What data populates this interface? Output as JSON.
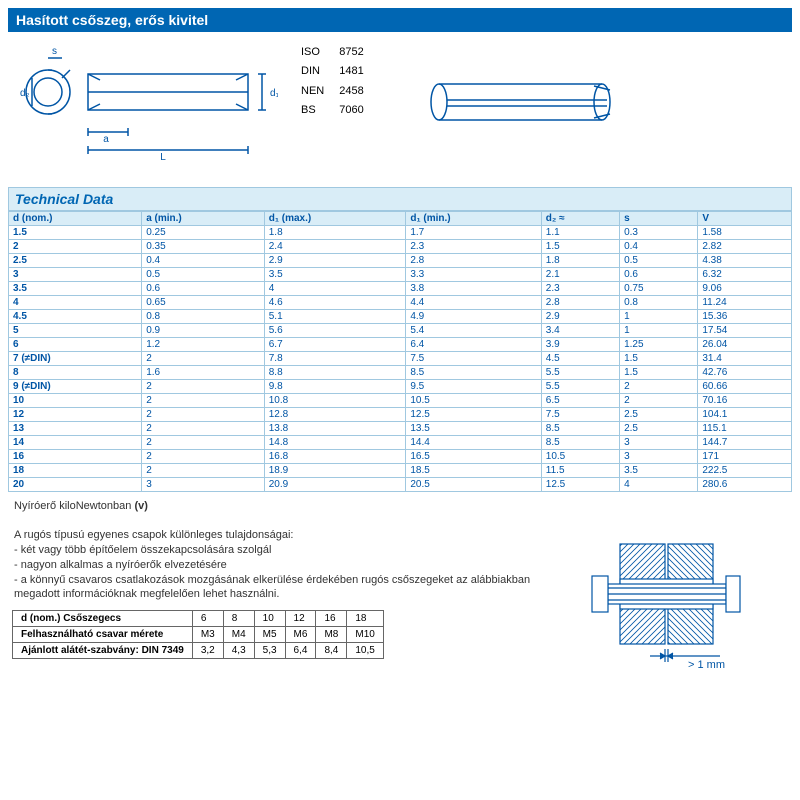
{
  "title": "Hasított csőszeg, erős kivitel",
  "standards": [
    [
      "ISO",
      "8752"
    ],
    [
      "DIN",
      "1481"
    ],
    [
      "NEN",
      "2458"
    ],
    [
      "BS",
      "7060"
    ]
  ],
  "tech_header": "Technical Data",
  "columns": [
    "d (nom.)",
    "a (min.)",
    "d₁ (max.)",
    "d₁ (min.)",
    "d₂ ≈",
    "s",
    "V"
  ],
  "rows": [
    [
      "1.5",
      "0.25",
      "1.8",
      "1.7",
      "1.1",
      "0.3",
      "1.58"
    ],
    [
      "2",
      "0.35",
      "2.4",
      "2.3",
      "1.5",
      "0.4",
      "2.82"
    ],
    [
      "2.5",
      "0.4",
      "2.9",
      "2.8",
      "1.8",
      "0.5",
      "4.38"
    ],
    [
      "3",
      "0.5",
      "3.5",
      "3.3",
      "2.1",
      "0.6",
      "6.32"
    ],
    [
      "3.5",
      "0.6",
      "4",
      "3.8",
      "2.3",
      "0.75",
      "9.06"
    ],
    [
      "4",
      "0.65",
      "4.6",
      "4.4",
      "2.8",
      "0.8",
      "11.24"
    ],
    [
      "4.5",
      "0.8",
      "5.1",
      "4.9",
      "2.9",
      "1",
      "15.36"
    ],
    [
      "5",
      "0.9",
      "5.6",
      "5.4",
      "3.4",
      "1",
      "17.54"
    ],
    [
      "6",
      "1.2",
      "6.7",
      "6.4",
      "3.9",
      "1.25",
      "26.04"
    ],
    [
      "7 (≠DIN)",
      "2",
      "7.8",
      "7.5",
      "4.5",
      "1.5",
      "31.4"
    ],
    [
      "8",
      "1.6",
      "8.8",
      "8.5",
      "5.5",
      "1.5",
      "42.76"
    ],
    [
      "9 (≠DIN)",
      "2",
      "9.8",
      "9.5",
      "5.5",
      "2",
      "60.66"
    ],
    [
      "10",
      "2",
      "10.8",
      "10.5",
      "6.5",
      "2",
      "70.16"
    ],
    [
      "12",
      "2",
      "12.8",
      "12.5",
      "7.5",
      "2.5",
      "104.1"
    ],
    [
      "13",
      "2",
      "13.8",
      "13.5",
      "8.5",
      "2.5",
      "115.1"
    ],
    [
      "14",
      "2",
      "14.8",
      "14.4",
      "8.5",
      "3",
      "144.7"
    ],
    [
      "16",
      "2",
      "16.8",
      "16.5",
      "10.5",
      "3",
      "171"
    ],
    [
      "18",
      "2",
      "18.9",
      "18.5",
      "11.5",
      "3.5",
      "222.5"
    ],
    [
      "20",
      "3",
      "20.9",
      "20.5",
      "12.5",
      "4",
      "280.6"
    ]
  ],
  "shear_note_1": "Nyíróerő kiloNewtonban",
  "shear_note_v": "(v)",
  "features_title": "A rugós típusú egyenes csapok különleges tulajdonságai:",
  "features": [
    "- két vagy több építőelem összekapcsolására szolgál",
    "- nagyon alkalmas a nyíróerők elvezetésére",
    "- a könnyű csavaros csatlakozások mozgásának elkerülése érdekében rugós csőszegeket az alábbiakban megadott információknak megfelelően lehet használni."
  ],
  "small_table": {
    "row_labels": [
      "d (nom.) Csőszegecs",
      "Felhasználható csavar mérete",
      "Ajánlott alátét-szabvány: DIN 7349"
    ],
    "cols": [
      "6",
      "8",
      "10",
      "12",
      "16",
      "18"
    ],
    "rows": [
      [
        "M3",
        "M4",
        "M5",
        "M6",
        "M8",
        "M10"
      ],
      [
        "3,2",
        "4,3",
        "5,3",
        "6,4",
        "8,4",
        "10,5"
      ]
    ]
  },
  "gap_label": "> 1 mm",
  "colors": {
    "brand_blue": "#0066b3",
    "light_blue": "#d9edf7",
    "line_blue": "#0055a5",
    "border_blue": "#a0c8e0"
  }
}
